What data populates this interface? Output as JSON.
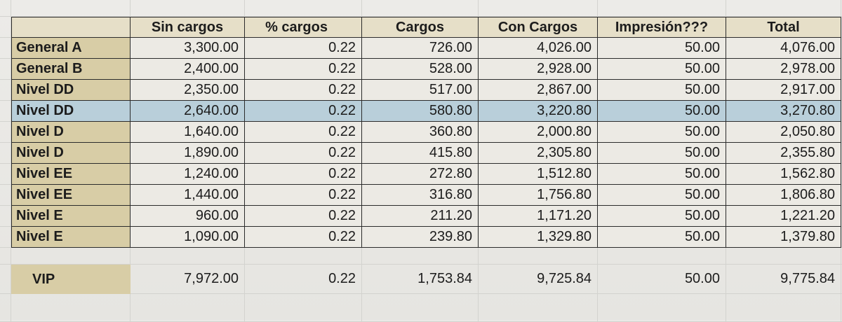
{
  "headers": [
    "Sin cargos",
    "% cargos",
    "Cargos",
    "Con Cargos",
    "Impresión???",
    "Total"
  ],
  "rows": [
    {
      "label": "General A",
      "values": [
        "3,300.00",
        "0.22",
        "726.00",
        "4,026.00",
        "50.00",
        "4,076.00"
      ]
    },
    {
      "label": "General B",
      "values": [
        "2,400.00",
        "0.22",
        "528.00",
        "2,928.00",
        "50.00",
        "2,978.00"
      ]
    },
    {
      "label": "Nivel DD",
      "values": [
        "2,350.00",
        "0.22",
        "517.00",
        "2,867.00",
        "50.00",
        "2,917.00"
      ]
    },
    {
      "label": "Nivel DD",
      "values": [
        "2,640.00",
        "0.22",
        "580.80",
        "3,220.80",
        "50.00",
        "3,270.80"
      ]
    },
    {
      "label": "Nivel D",
      "values": [
        "1,640.00",
        "0.22",
        "360.80",
        "2,000.80",
        "50.00",
        "2,050.80"
      ]
    },
    {
      "label": "Nivel D",
      "values": [
        "1,890.00",
        "0.22",
        "415.80",
        "2,305.80",
        "50.00",
        "2,355.80"
      ]
    },
    {
      "label": "Nivel EE",
      "values": [
        "1,240.00",
        "0.22",
        "272.80",
        "1,512.80",
        "50.00",
        "1,562.80"
      ]
    },
    {
      "label": "Nivel EE",
      "values": [
        "1,440.00",
        "0.22",
        "316.80",
        "1,756.80",
        "50.00",
        "1,806.80"
      ]
    },
    {
      "label": "Nivel E",
      "values": [
        "960.00",
        "0.22",
        "211.20",
        "1,171.20",
        "50.00",
        "1,221.20"
      ]
    },
    {
      "label": "Nivel E",
      "values": [
        "1,090.00",
        "0.22",
        "239.80",
        "1,329.80",
        "50.00",
        "1,379.80"
      ]
    }
  ],
  "vip": {
    "label": "VIP",
    "values": [
      "7,972.00",
      "0.22",
      "1,753.84",
      "9,725.84",
      "50.00",
      "9,775.84"
    ]
  },
  "highlight_row_index": 3,
  "colors": {
    "header_bg": "#e6dfc8",
    "label_bg": "#d8cda6",
    "highlight_bg": "#b9cfda"
  }
}
